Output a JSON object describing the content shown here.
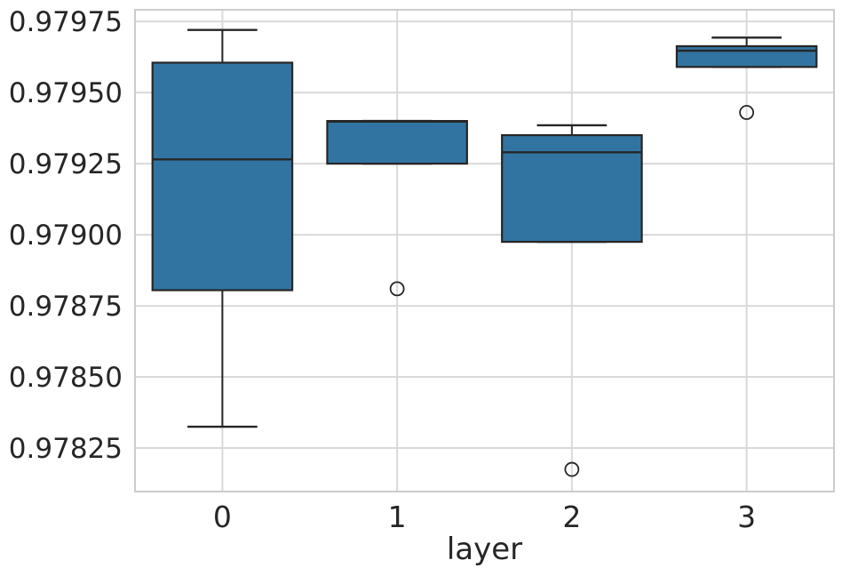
{
  "chart_data": {
    "type": "box",
    "title": "",
    "xlabel": "layer",
    "ylabel": "",
    "categories": [
      "0",
      "1",
      "2",
      "3"
    ],
    "ytick_labels": [
      "0.97825",
      "0.97850",
      "0.97875",
      "0.97900",
      "0.97925",
      "0.97950",
      "0.97975"
    ],
    "yticks": [
      0.97825,
      0.9785,
      0.97875,
      0.979,
      0.97925,
      0.9795,
      0.97975
    ],
    "ylim": [
      0.978097,
      0.979791
    ],
    "grid": true,
    "legend": null,
    "box_width_frac": 0.8,
    "series": [
      {
        "category": "0",
        "whisker_low": 0.978325,
        "q1": 0.978805,
        "median": 0.979265,
        "q3": 0.979605,
        "whisker_high": 0.97972,
        "outliers": []
      },
      {
        "category": "1",
        "whisker_low": 0.97925,
        "q1": 0.97925,
        "median": 0.979398,
        "q3": 0.9794,
        "whisker_high": 0.9794,
        "outliers": [
          0.97881
        ]
      },
      {
        "category": "2",
        "whisker_low": 0.978975,
        "q1": 0.978975,
        "median": 0.97929,
        "q3": 0.97935,
        "whisker_high": 0.979385,
        "outliers": [
          0.978175
        ]
      },
      {
        "category": "3",
        "whisker_low": 0.97959,
        "q1": 0.97959,
        "median": 0.979647,
        "q3": 0.979663,
        "whisker_high": 0.979693,
        "outliers": [
          0.97943
        ]
      }
    ],
    "colors": {
      "box_fill": "#3274a1",
      "box_edge": "#262626",
      "median_line": "#262626",
      "whisker": "#262626",
      "outlier_edge": "#262626",
      "grid_line": "#d9d9d9",
      "spine": "#cccccc",
      "tick_text": "#262626",
      "background": "#ffffff"
    }
  }
}
